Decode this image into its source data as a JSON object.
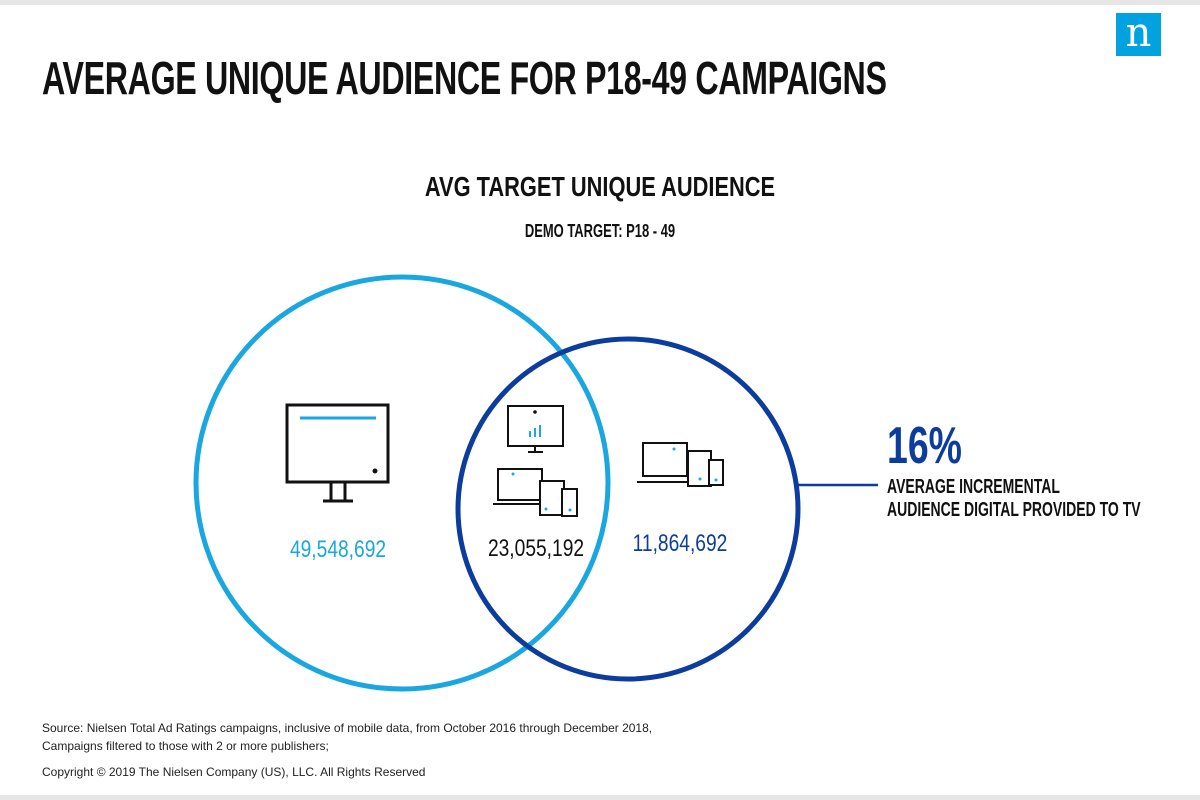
{
  "logo": {
    "glyph": "n"
  },
  "title": "AVERAGE UNIQUE AUDIENCE FOR P18-49 CAMPAIGNS",
  "subtitle": "AVG TARGET UNIQUE AUDIENCE",
  "demo_target": "DEMO TARGET:  P18 - 49",
  "venn": {
    "tv_only_value": "49,548,692",
    "overlap_value": "23,055,192",
    "digital_only_value": "11,864,692",
    "tv_icon": "tv-monitor-icon",
    "overlap_icons": [
      "tv-monitor-icon",
      "laptop-tablet-phone-icon"
    ],
    "digital_icon": "laptop-tablet-phone-icon",
    "colors": {
      "tv": "#1aa7e0",
      "digital": "#0c3d9e"
    }
  },
  "stat": {
    "percent": "16%",
    "caption_line1": "AVERAGE INCREMENTAL",
    "caption_line2": "AUDIENCE DIGITAL PROVIDED TO TV"
  },
  "footnotes": {
    "source_line1": "Source: Nielsen Total Ad Ratings campaigns, inclusive of mobile data, from October 2016 through December 2018,",
    "source_line2": "Campaigns filtered to those with 2 or more publishers;",
    "copyright": "Copyright © 2019 The Nielsen Company (US), LLC. All Rights Reserved"
  }
}
